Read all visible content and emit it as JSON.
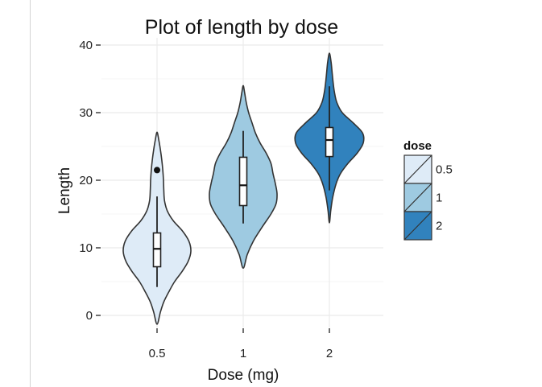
{
  "chart_data": {
    "type": "violin",
    "title": "Plot of length  by dose",
    "xlabel": "Dose (mg)",
    "ylabel": "Length",
    "categories": [
      "0.5",
      "1",
      "2"
    ],
    "ylim": [
      -2,
      40
    ],
    "yticks": [
      0,
      10,
      20,
      30,
      40
    ],
    "grid": true,
    "legend": {
      "title": "dose",
      "position": "right",
      "entries": [
        {
          "label": "0.5",
          "color": "#deebf7"
        },
        {
          "label": "1",
          "color": "#9ecae1"
        },
        {
          "label": "2",
          "color": "#3182bd"
        }
      ]
    },
    "series": [
      {
        "name": "0.5",
        "color": "#deebf7",
        "violin_range": [
          -1.3,
          27.1
        ],
        "density": [
          [
            -1.3,
            0
          ],
          [
            0.5,
            0.1
          ],
          [
            2.0,
            0.2
          ],
          [
            3.5,
            0.35
          ],
          [
            5.0,
            0.52
          ],
          [
            6.5,
            0.74
          ],
          [
            8.0,
            0.92
          ],
          [
            9.5,
            1.0
          ],
          [
            11.0,
            0.94
          ],
          [
            12.5,
            0.75
          ],
          [
            14.0,
            0.48
          ],
          [
            15.5,
            0.3
          ],
          [
            17.0,
            0.22
          ],
          [
            18.5,
            0.2
          ],
          [
            20.0,
            0.19
          ],
          [
            21.5,
            0.17
          ],
          [
            23.0,
            0.14
          ],
          [
            24.5,
            0.1
          ],
          [
            26.0,
            0.05
          ],
          [
            27.1,
            0
          ]
        ],
        "box": {
          "whisker_low": 4.2,
          "q1": 7.2,
          "median": 9.85,
          "q3": 12.2,
          "whisker_high": 17.6
        },
        "outliers": [
          21.5
        ]
      },
      {
        "name": "1",
        "color": "#9ecae1",
        "violin_range": [
          7.0,
          34.0
        ],
        "density": [
          [
            7.0,
            0
          ],
          [
            9.0,
            0.12
          ],
          [
            11.0,
            0.3
          ],
          [
            13.0,
            0.55
          ],
          [
            15.0,
            0.82
          ],
          [
            16.5,
            0.97
          ],
          [
            18.0,
            1.0
          ],
          [
            19.5,
            0.95
          ],
          [
            21.0,
            0.88
          ],
          [
            22.5,
            0.82
          ],
          [
            24.0,
            0.68
          ],
          [
            25.5,
            0.5
          ],
          [
            27.0,
            0.36
          ],
          [
            28.5,
            0.26
          ],
          [
            30.0,
            0.16
          ],
          [
            31.5,
            0.09
          ],
          [
            33.0,
            0.04
          ],
          [
            34.0,
            0
          ]
        ],
        "box": {
          "whisker_low": 13.6,
          "q1": 16.25,
          "median": 19.25,
          "q3": 23.4,
          "whisker_high": 27.3
        },
        "outliers": []
      },
      {
        "name": "2",
        "color": "#3182bd",
        "violin_range": [
          13.7,
          38.8
        ],
        "density": [
          [
            13.7,
            0
          ],
          [
            15.5,
            0.04
          ],
          [
            17.5,
            0.1
          ],
          [
            19.5,
            0.2
          ],
          [
            21.0,
            0.33
          ],
          [
            22.5,
            0.55
          ],
          [
            24.0,
            0.82
          ],
          [
            25.5,
            1.0
          ],
          [
            27.0,
            0.98
          ],
          [
            28.5,
            0.7
          ],
          [
            30.0,
            0.38
          ],
          [
            31.5,
            0.22
          ],
          [
            33.0,
            0.15
          ],
          [
            34.5,
            0.11
          ],
          [
            36.0,
            0.08
          ],
          [
            37.5,
            0.05
          ],
          [
            38.8,
            0
          ]
        ],
        "box": {
          "whisker_low": 18.5,
          "q1": 23.5,
          "median": 25.95,
          "q3": 27.8,
          "whisker_high": 33.9
        },
        "outliers": []
      }
    ]
  }
}
